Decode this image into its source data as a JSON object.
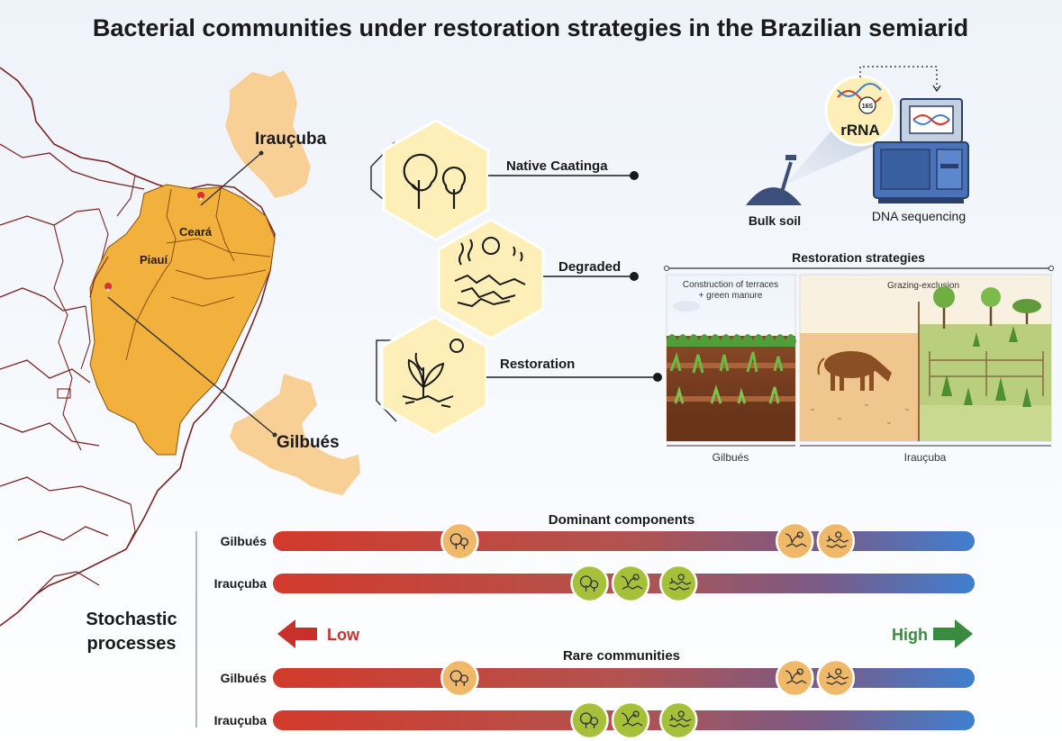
{
  "title": "Bacterial communities under restoration strategies in the Brazilian semiarid",
  "map": {
    "states": [
      "Ceará",
      "Piauí"
    ],
    "sites": [
      "Irauçuba",
      "Gilbués"
    ]
  },
  "land_uses": {
    "native": "Native Caatinga",
    "degraded": "Degraded",
    "restoration": "Restoration"
  },
  "sequencing": {
    "bulk_soil": "Bulk soil",
    "marker_number": "16S",
    "marker_label": "rRNA",
    "method": "DNA sequencing"
  },
  "restoration_strategies": {
    "title": "Restoration strategies",
    "gilbues_panel_line1": "Construction of terraces",
    "gilbues_panel_line2": "+ green manure",
    "iraucuba_panel": "Grazing-exclusion",
    "gilbues_site": "Gilbués",
    "iraucuba_site": "Irauçuba"
  },
  "stochastic": {
    "title_line1": "Stochastic",
    "title_line2": "processes",
    "low": "Low",
    "high": "High",
    "dominant_title": "Dominant components",
    "rare_title": "Rare communities",
    "rows": [
      {
        "site": "Gilbués",
        "native": 0.26,
        "restoration": 0.75,
        "degraded": 0.81
      },
      {
        "site": "Irauçuba",
        "native": 0.45,
        "restoration": 0.51,
        "degraded": 0.58
      },
      {
        "site": "Gilbués",
        "native": 0.26,
        "restoration": 0.75,
        "degraded": 0.81
      },
      {
        "site": "Irauçuba",
        "native": 0.45,
        "restoration": 0.51,
        "degraded": 0.58
      }
    ]
  },
  "colors": {
    "low": "#d23a2b",
    "high": "#3f7fd0",
    "gilbues_icon": "#f0b96a",
    "iraucuba_icon": "#a6c03a",
    "map_state": "#f1b13c",
    "map_site": "#f8cf94"
  }
}
